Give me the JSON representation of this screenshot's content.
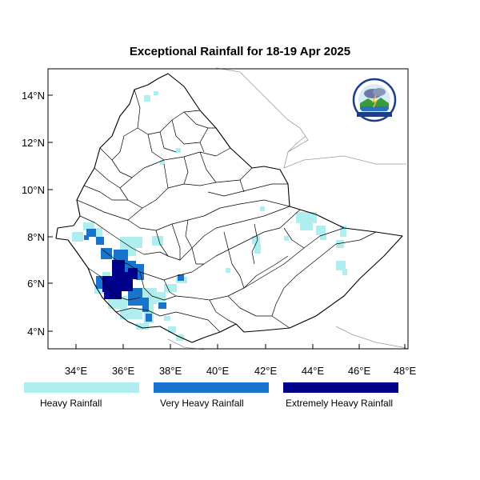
{
  "title": "Exceptional Rainfall for 18-19 Apr 2025",
  "axes": {
    "x_ticks": [
      "34°E",
      "36°E",
      "38°E",
      "40°E",
      "42°E",
      "44°E",
      "46°E",
      "48°E"
    ],
    "y_ticks": [
      "4°N",
      "6°N",
      "8°N",
      "10°N",
      "12°N",
      "14°N"
    ],
    "lon_range": [
      32.8,
      48.2
    ],
    "lat_range": [
      3.2,
      15.0
    ]
  },
  "legend": [
    {
      "label": "Heavy Rainfall",
      "color": "#aeeeee"
    },
    {
      "label": "Very Heavy Rainfall",
      "color": "#1874cd"
    },
    {
      "label": "Extremely Heavy Rainfall",
      "color": "#00008b"
    }
  ],
  "logo": {
    "name": "ethiopian-meteorology-institute-logo",
    "text": "የኢትዮጵያ ሜቲዎሮሎጂ ኢንስቲትዩት Ethiopian Meteorology Institute EMI"
  }
}
